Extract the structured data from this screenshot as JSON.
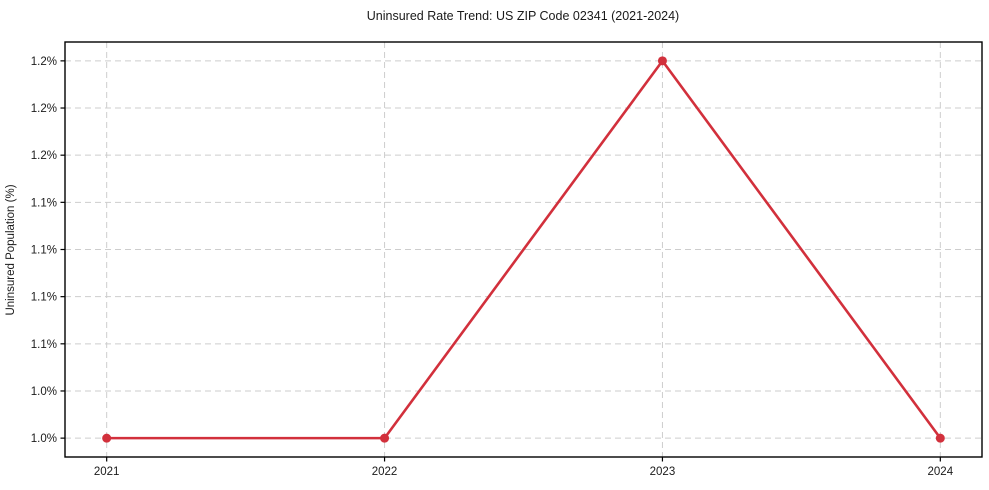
{
  "chart_data": {
    "type": "line",
    "title": "Uninsured Rate Trend: US ZIP Code 02341 (2021-2024)",
    "xlabel": "",
    "ylabel": "Uninsured Population (%)",
    "x": [
      2021,
      2022,
      2023,
      2024
    ],
    "x_tick_labels": [
      "2021",
      "2022",
      "2023",
      "2024"
    ],
    "series": [
      {
        "name": "Uninsured Rate",
        "values": [
          1.0,
          1.0,
          1.2,
          1.0
        ],
        "color": "#d2303c",
        "marker": "circle"
      }
    ],
    "y_ticks": [
      1.0,
      1.025,
      1.05,
      1.075,
      1.1,
      1.125,
      1.15,
      1.175,
      1.2
    ],
    "y_tick_labels": [
      "1.0%",
      "1.0%",
      "1.1%",
      "1.1%",
      "1.1%",
      "1.1%",
      "1.2%",
      "1.2%",
      "1.2%"
    ],
    "xlim": [
      2020.85,
      2024.15
    ],
    "ylim": [
      0.99,
      1.21
    ],
    "grid": true,
    "grid_style": "dashed",
    "grid_color": "#cdcdcd",
    "axis_color": "#000000",
    "background": "#ffffff",
    "legend": false
  }
}
